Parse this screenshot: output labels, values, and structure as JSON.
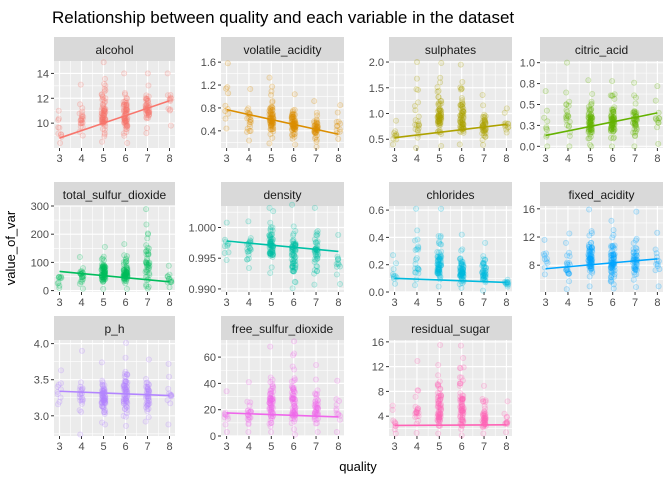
{
  "chart_data": {
    "type": "scatter",
    "title": "Relationship between quality and each variable in the dataset",
    "xlabel": "quality",
    "ylabel": "value_of_var",
    "x_ticks": [
      3,
      4,
      5,
      6,
      7,
      8
    ],
    "grid": true,
    "panels": [
      {
        "name": "alcohol",
        "color": "#F8766D",
        "ylim": [
          8,
          15
        ],
        "y_ticks": [
          10,
          12,
          14
        ],
        "ranges": {
          "3": [
            8.4,
            11.0
          ],
          "4": [
            9.0,
            13.1
          ],
          "5": [
            8.5,
            14.9
          ],
          "6": [
            8.4,
            14.0
          ],
          "7": [
            9.2,
            14.0
          ],
          "8": [
            9.8,
            14.0
          ]
        },
        "fit": [
          [
            3,
            8.8
          ],
          [
            8,
            11.8
          ]
        ]
      },
      {
        "name": "volatile_acidity",
        "color": "#DB8E00",
        "ylim": [
          0.1,
          1.62
        ],
        "y_ticks": [
          0.4,
          0.8,
          1.2,
          1.6
        ],
        "ranges": {
          "3": [
            0.44,
            1.58
          ],
          "4": [
            0.23,
            1.13
          ],
          "5": [
            0.18,
            1.33
          ],
          "6": [
            0.16,
            1.04
          ],
          "7": [
            0.12,
            0.92
          ],
          "8": [
            0.26,
            0.85
          ]
        },
        "fit": [
          [
            3,
            0.77
          ],
          [
            8,
            0.34
          ]
        ]
      },
      {
        "name": "sulphates",
        "color": "#AEA200",
        "ylim": [
          0.33,
          2.02
        ],
        "y_ticks": [
          0.5,
          1.0,
          1.5,
          2.0
        ],
        "ranges": {
          "3": [
            0.4,
            0.86
          ],
          "4": [
            0.33,
            2.0
          ],
          "5": [
            0.37,
            1.98
          ],
          "6": [
            0.4,
            1.95
          ],
          "7": [
            0.39,
            1.36
          ],
          "8": [
            0.63,
            1.1
          ]
        },
        "fit": [
          [
            3,
            0.53
          ],
          [
            8,
            0.79
          ]
        ]
      },
      {
        "name": "citric_acid",
        "color": "#64B200",
        "ylim": [
          -0.02,
          1.02
        ],
        "y_ticks": [
          0.0,
          0.25,
          0.5,
          0.75,
          1.0
        ],
        "ranges": {
          "3": [
            0.0,
            0.66
          ],
          "4": [
            0.0,
            1.0
          ],
          "5": [
            0.0,
            0.79
          ],
          "6": [
            0.0,
            0.78
          ],
          "7": [
            0.0,
            0.76
          ],
          "8": [
            0.03,
            0.72
          ]
        },
        "fit": [
          [
            3,
            0.13
          ],
          [
            8,
            0.4
          ]
        ]
      },
      {
        "name": "total_sulfur_dioxide",
        "color": "#00BD5C",
        "ylim": [
          -5,
          300
        ],
        "y_ticks": [
          0,
          100,
          200,
          300
        ],
        "ranges": {
          "3": [
            9,
            49
          ],
          "4": [
            7,
            119
          ],
          "5": [
            6,
            155
          ],
          "6": [
            6,
            165
          ],
          "7": [
            7,
            289
          ],
          "8": [
            12,
            88
          ]
        },
        "fit": [
          [
            3,
            68
          ],
          [
            8,
            31
          ]
        ]
      },
      {
        "name": "density",
        "color": "#00C1A7",
        "ylim": [
          0.9895,
          1.0035
        ],
        "y_ticks": [
          0.99,
          0.995,
          1.0
        ],
        "ranges": {
          "3": [
            0.9947,
            1.0008
          ],
          "4": [
            0.9934,
            1.001
          ],
          "5": [
            0.9926,
            1.0032
          ],
          "6": [
            0.9901,
            1.0037
          ],
          "7": [
            0.9907,
            1.0032
          ],
          "8": [
            0.9908,
            0.9988
          ]
        },
        "fit": [
          [
            3,
            0.9978
          ],
          [
            8,
            0.9961
          ]
        ]
      },
      {
        "name": "chlorides",
        "color": "#00BADE",
        "ylim": [
          0.0,
          0.63
        ],
        "y_ticks": [
          0.0,
          0.2,
          0.4,
          0.6
        ],
        "ranges": {
          "3": [
            0.06,
            0.27
          ],
          "4": [
            0.05,
            0.61
          ],
          "5": [
            0.04,
            0.61
          ],
          "6": [
            0.03,
            0.42
          ],
          "7": [
            0.01,
            0.36
          ],
          "8": [
            0.04,
            0.09
          ]
        },
        "fit": [
          [
            3,
            0.1
          ],
          [
            8,
            0.07
          ]
        ]
      },
      {
        "name": "fixed_acidity",
        "color": "#00A6FF",
        "ylim": [
          4.2,
          16.4
        ],
        "y_ticks": [
          8,
          12,
          16
        ],
        "ranges": {
          "3": [
            6.7,
            11.6
          ],
          "4": [
            4.6,
            12.5
          ],
          "5": [
            5.0,
            15.9
          ],
          "6": [
            4.7,
            14.3
          ],
          "7": [
            4.9,
            15.6
          ],
          "8": [
            5.0,
            12.6
          ]
        },
        "fit": [
          [
            3,
            7.5
          ],
          [
            8,
            8.9
          ]
        ]
      },
      {
        "name": "p_h",
        "color": "#B385FF",
        "ylim": [
          2.72,
          4.05
        ],
        "y_ticks": [
          3.0,
          3.5,
          4.0
        ],
        "ranges": {
          "3": [
            3.16,
            3.63
          ],
          "4": [
            2.74,
            3.9
          ],
          "5": [
            2.88,
            3.74
          ],
          "6": [
            2.86,
            4.01
          ],
          "7": [
            2.92,
            3.78
          ],
          "8": [
            2.88,
            3.72
          ]
        },
        "fit": [
          [
            3,
            3.34
          ],
          [
            8,
            3.28
          ]
        ]
      },
      {
        "name": "free_sulfur_dioxide",
        "color": "#EF67EB",
        "ylim": [
          0,
          73
        ],
        "y_ticks": [
          0,
          20,
          40,
          60
        ],
        "ranges": {
          "3": [
            3,
            34
          ],
          "4": [
            3,
            41
          ],
          "5": [
            3,
            68
          ],
          "6": [
            1,
            72
          ],
          "7": [
            3,
            54
          ],
          "8": [
            3,
            42
          ]
        },
        "fit": [
          [
            3,
            17.5
          ],
          [
            8,
            14.5
          ]
        ]
      },
      {
        "name": "residual_sugar",
        "color": "#FF63B6",
        "ylim": [
          0.8,
          16.3
        ],
        "y_ticks": [
          4,
          8,
          12,
          16
        ],
        "ranges": {
          "3": [
            1.2,
            5.7
          ],
          "4": [
            1.3,
            12.9
          ],
          "5": [
            1.2,
            15.5
          ],
          "6": [
            0.9,
            15.4
          ],
          "7": [
            1.2,
            8.9
          ],
          "8": [
            1.4,
            6.4
          ]
        },
        "fit": [
          [
            3,
            2.5
          ],
          [
            8,
            2.6
          ]
        ]
      }
    ]
  }
}
